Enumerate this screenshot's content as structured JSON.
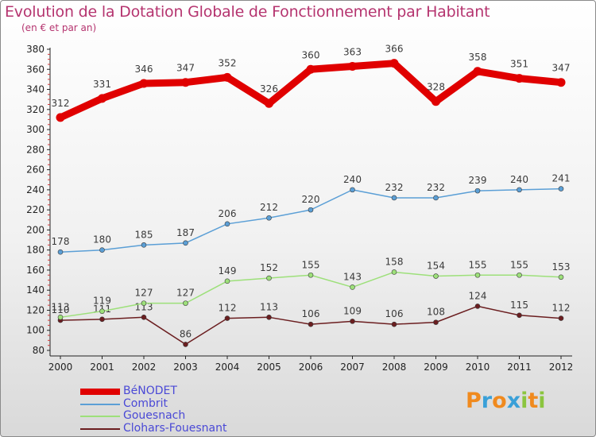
{
  "title": "Evolution de la Dotation Globale de Fonctionnement par Habitant",
  "subtitle": "(en € et par an)",
  "brand": {
    "text": "Proxiti",
    "colors": [
      "#f08a1e",
      "#3aa0d8",
      "#f08a1e",
      "#3aa0d8",
      "#8bc53f",
      "#f08a1e",
      "#8bc53f"
    ]
  },
  "colors": {
    "title": "#b5346f",
    "axis": "#222222",
    "legend_text": "#4a49d6"
  },
  "chart_data": {
    "type": "line",
    "title": "Evolution de la Dotation Globale de Fonctionnement par Habitant",
    "subtitle": "(en € et par an)",
    "categories": [
      "2000",
      "2001",
      "2002",
      "2003",
      "2004",
      "2005",
      "2006",
      "2007",
      "2008",
      "2009",
      "2010",
      "2011",
      "2012"
    ],
    "ylim": [
      80,
      380
    ],
    "yticks": [
      80,
      100,
      120,
      140,
      160,
      180,
      200,
      220,
      240,
      260,
      280,
      300,
      320,
      340,
      360,
      380
    ],
    "grid": false,
    "legend_position": "bottom-left",
    "series": [
      {
        "name": "BéNODET",
        "color": "#e00000",
        "line_width": 9,
        "values": [
          312,
          331,
          346,
          347,
          352,
          326,
          360,
          363,
          366,
          328,
          358,
          351,
          347
        ]
      },
      {
        "name": "Combrit",
        "color": "#5b9fd6",
        "line_width": 1.5,
        "values": [
          178,
          180,
          185,
          187,
          206,
          212,
          220,
          240,
          232,
          232,
          239,
          240,
          241
        ]
      },
      {
        "name": "Gouesnach",
        "color": "#9de07a",
        "line_width": 1.5,
        "values": [
          113,
          119,
          127,
          127,
          149,
          152,
          155,
          143,
          158,
          154,
          155,
          155,
          153
        ]
      },
      {
        "name": "Clohars-Fouesnant",
        "color": "#6b1e20",
        "line_width": 1.5,
        "values": [
          110,
          111,
          113,
          86,
          112,
          113,
          106,
          109,
          106,
          108,
          124,
          115,
          112
        ]
      }
    ]
  }
}
